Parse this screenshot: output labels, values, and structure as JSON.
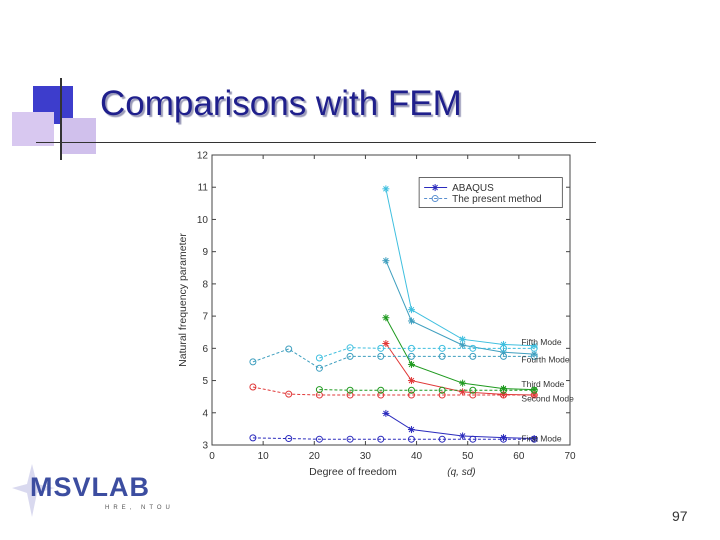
{
  "slide": {
    "title": "Comparisons with FEM",
    "page_number": "97",
    "logo_text": "MSVLAB",
    "logo_subtext": "HRE, NTOU"
  },
  "colors": {
    "title": "#1f1f8c",
    "deco_blue": "#3d3dcc",
    "deco_lavender": "#c9b8e8",
    "deco_line": "#333333",
    "series_colors": [
      "#2b2bbd",
      "#e03838",
      "#1f9a1f",
      "#3f9fbf",
      "#3fbfdf"
    ]
  },
  "chart_data": {
    "type": "line",
    "xlabel": "Degree of freedom",
    "xlabel_suffix": "(q, sd)",
    "ylabel": "Natural frequency parameter",
    "xlim": [
      0,
      70
    ],
    "ylim": [
      3,
      12
    ],
    "x_ticks": [
      "0",
      "10",
      "20",
      "30",
      "40",
      "50",
      "60",
      "70"
    ],
    "y_ticks": [
      "3",
      "4",
      "5",
      "6",
      "7",
      "8",
      "9",
      "10",
      "11",
      "12"
    ],
    "grid": false,
    "legend_position": "top-right",
    "legend": [
      {
        "label": "ABAQUS",
        "marker": "star",
        "dash": "solid"
      },
      {
        "label": "The present method",
        "marker": "circle",
        "dash": "dashed"
      }
    ],
    "mode_labels": [
      "First Mode",
      "Second Mode",
      "Third Mode",
      "Fourth Mode",
      "Fifth Mode"
    ],
    "abaqus_series": [
      {
        "mode": "First Mode",
        "x": [
          34,
          39,
          49,
          57,
          63
        ],
        "y": [
          3.98,
          3.48,
          3.28,
          3.23,
          3.2
        ]
      },
      {
        "mode": "Second Mode",
        "x": [
          34,
          39,
          49,
          57,
          63
        ],
        "y": [
          6.15,
          5.0,
          4.65,
          4.57,
          4.55
        ]
      },
      {
        "mode": "Third Mode",
        "x": [
          34,
          39,
          49,
          57,
          63
        ],
        "y": [
          6.95,
          5.5,
          4.92,
          4.75,
          4.72
        ]
      },
      {
        "mode": "Fourth Mode",
        "x": [
          34,
          39,
          49,
          57,
          63
        ],
        "y": [
          8.72,
          6.85,
          6.1,
          5.88,
          5.82
        ]
      },
      {
        "mode": "Fifth Mode",
        "x": [
          34,
          39,
          49,
          57,
          63
        ],
        "y": [
          10.95,
          7.2,
          6.28,
          6.12,
          6.08
        ]
      }
    ],
    "present_series": [
      {
        "mode": "First Mode",
        "x": [
          8,
          15,
          21,
          27,
          33,
          39,
          45,
          51,
          57,
          63
        ],
        "y": [
          3.22,
          3.2,
          3.18,
          3.18,
          3.18,
          3.18,
          3.18,
          3.18,
          3.18,
          3.18
        ]
      },
      {
        "mode": "Second Mode",
        "x": [
          8,
          15,
          21,
          27,
          33,
          39,
          45,
          51,
          57,
          63
        ],
        "y": [
          4.8,
          4.58,
          4.55,
          4.55,
          4.55,
          4.55,
          4.55,
          4.55,
          4.55,
          4.55
        ]
      },
      {
        "mode": "Third Mode",
        "x": [
          21,
          27,
          33,
          39,
          45,
          51,
          57,
          63
        ],
        "y": [
          4.72,
          4.7,
          4.7,
          4.7,
          4.7,
          4.7,
          4.7,
          4.7
        ]
      },
      {
        "mode": "Fourth Mode",
        "x": [
          8,
          15,
          21,
          27,
          33,
          39,
          45,
          51,
          57,
          63
        ],
        "y": [
          5.58,
          5.98,
          5.38,
          5.75,
          5.75,
          5.75,
          5.75,
          5.75,
          5.75,
          5.75
        ]
      },
      {
        "mode": "Fifth Mode",
        "x": [
          21,
          27,
          33,
          39,
          45,
          51,
          57,
          63
        ],
        "y": [
          5.7,
          6.02,
          6.0,
          6.0,
          6.0,
          6.0,
          6.0,
          6.0
        ]
      }
    ]
  }
}
